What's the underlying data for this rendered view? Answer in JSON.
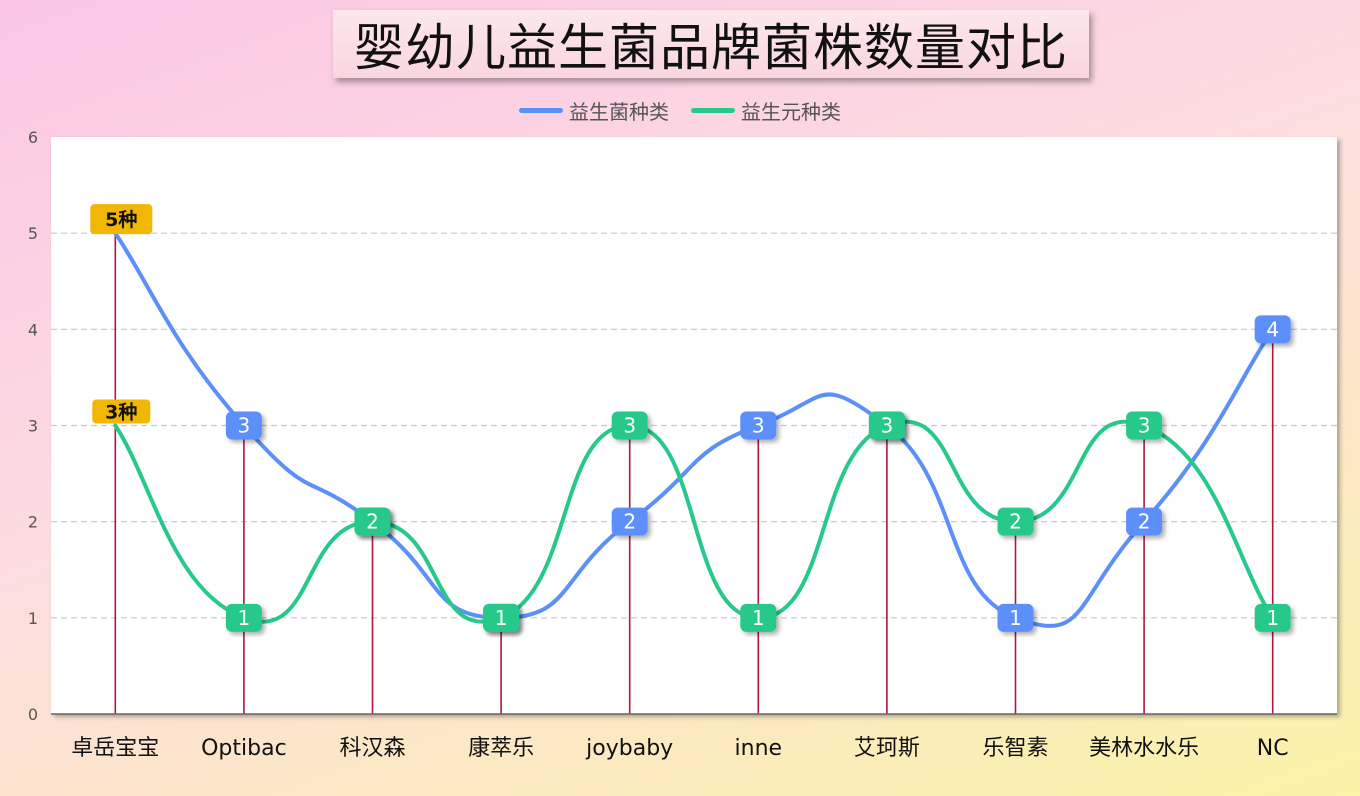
{
  "chart_data": {
    "type": "line",
    "title": "婴幼儿益生菌品牌菌株数量对比",
    "categories": [
      "卓岳宝宝",
      "Optibac",
      "科汉森",
      "康萃乐",
      "joybaby",
      "inne",
      "艾珂斯",
      "乐智素",
      "美林水水乐",
      "NC"
    ],
    "series": [
      {
        "name": "益生菌种类",
        "color": "#5b8ff9",
        "values": [
          5,
          3,
          2,
          1,
          2,
          3,
          3,
          1,
          2,
          4
        ]
      },
      {
        "name": "益生元种类",
        "color": "#27c98a",
        "values": [
          3,
          1,
          2,
          1,
          3,
          1,
          3,
          2,
          3,
          1
        ]
      }
    ],
    "yticks": [
      "0",
      "1",
      "2",
      "3",
      "4",
      "5",
      "6"
    ],
    "ylim": [
      0,
      6
    ],
    "grid": true,
    "legend_position": "top",
    "highlight_labels": [
      "5种",
      "3种"
    ],
    "highlight_color": "#f2b705",
    "drop_line_color": "#b0173b"
  }
}
